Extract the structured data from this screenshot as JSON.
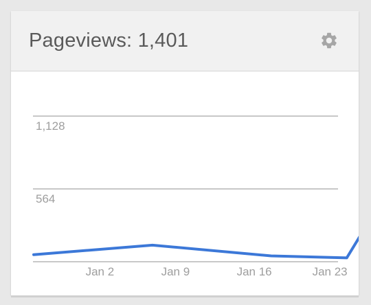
{
  "card": {
    "title_label": "Pageviews:",
    "title_value": "1,401",
    "settings_icon": "gear-icon"
  },
  "colors": {
    "line": "#3c78d8",
    "grid": "#b5b5b5",
    "axis_text": "#9e9e9e",
    "header_bg": "#f1f1f1"
  },
  "chart_data": {
    "type": "line",
    "title": "",
    "xlabel": "",
    "ylabel": "",
    "grid": true,
    "x_ticks": [
      "Jan 2",
      "Jan 9",
      "Jan 16",
      "Jan 23"
    ],
    "y_ticks": [
      564,
      1128
    ],
    "y_tick_labels": [
      "564",
      "1,128"
    ],
    "ylim": [
      0,
      1128
    ],
    "series": [
      {
        "x": [
          "Dec 28",
          "Jan 8",
          "Jan 19",
          "Jan 26",
          "Feb 3"
        ],
        "values": [
          55,
          128,
          45,
          30,
          1128
        ]
      }
    ]
  }
}
